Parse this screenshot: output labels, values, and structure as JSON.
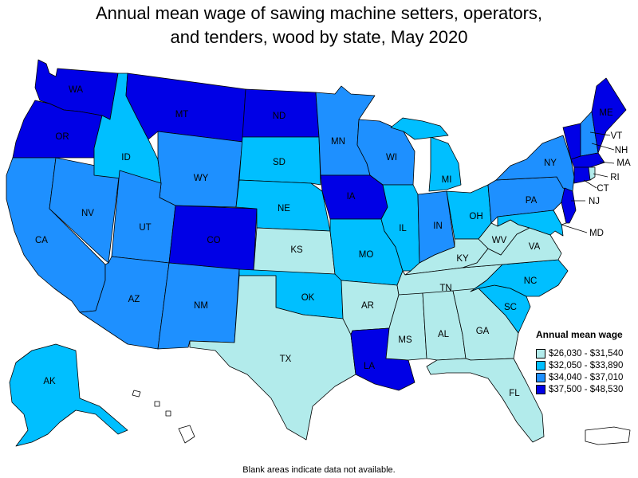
{
  "title_line1": "Annual mean wage of sawing machine setters, operators,",
  "title_line2": "and tenders, wood by state, May 2020",
  "legend": {
    "title": "Annual mean wage",
    "ranges": [
      {
        "label": "$26,030 - $31,540",
        "color": "#b2ebeb"
      },
      {
        "label": "$32,050 - $33,890",
        "color": "#00bfff"
      },
      {
        "label": "$34,040 - $37,010",
        "color": "#1e90ff"
      },
      {
        "label": "$37,500 - $48,530",
        "color": "#0000e6"
      }
    ]
  },
  "footnote": "Blank areas indicate data not available.",
  "states": {
    "WA": 3,
    "OR": 3,
    "CA": 2,
    "NV": 2,
    "ID": 1,
    "MT": 3,
    "WY": 2,
    "UT": 2,
    "AZ": 2,
    "CO": 3,
    "NM": 2,
    "ND": 3,
    "SD": 1,
    "NE": 1,
    "KS": 0,
    "OK": 1,
    "TX": 0,
    "MN": 2,
    "IA": 3,
    "MO": 1,
    "AR": 0,
    "LA": 3,
    "WI": 2,
    "IL": 1,
    "MI": 1,
    "IN": 2,
    "OH": 1,
    "KY": 0,
    "TN": 0,
    "MS": 0,
    "AL": 0,
    "GA": 0,
    "FL": 0,
    "SC": 1,
    "NC": 1,
    "VA": 0,
    "WV": 0,
    "PA": 2,
    "NY": 2,
    "VT": 3,
    "NH": 2,
    "ME": 3,
    "MA": 3,
    "CT": 3,
    "RI": 0,
    "NJ": 3,
    "MD": 1,
    "DE": null,
    "AK": 1,
    "HI": null,
    "PR": null
  },
  "callout_labels": [
    "VT",
    "NH",
    "MA",
    "RI",
    "CT",
    "NJ",
    "MD"
  ]
}
